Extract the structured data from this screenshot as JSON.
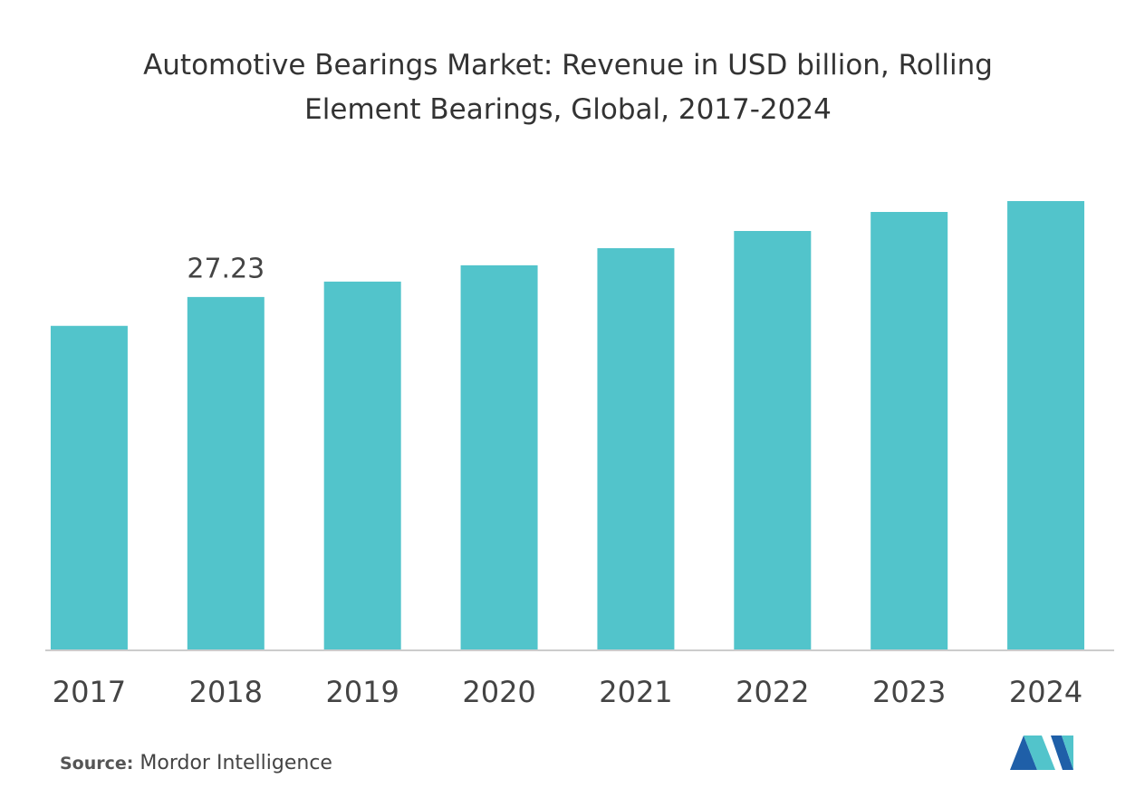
{
  "chart_data": {
    "type": "bar",
    "title": "Automotive Bearings Market: Revenue in USD billion, Rolling Element Bearings, Global, 2017-2024",
    "categories": [
      "2017",
      "2018",
      "2019",
      "2020",
      "2021",
      "2022",
      "2023",
      "2024"
    ],
    "values": [
      25.0,
      27.23,
      28.42,
      29.68,
      31.0,
      32.33,
      33.8,
      34.64
    ],
    "data_labels": [
      false,
      true,
      false,
      false,
      false,
      false,
      false,
      false
    ],
    "color": "#52c4cb",
    "source_label": "Source:",
    "source": "Mordor Intelligence"
  }
}
